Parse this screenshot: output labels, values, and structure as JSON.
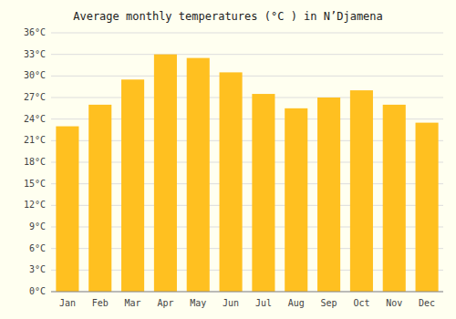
{
  "chart_data": {
    "type": "bar",
    "title": "Average monthly temperatures (°C ) in N’Djamena",
    "categories": [
      "Jan",
      "Feb",
      "Mar",
      "Apr",
      "May",
      "Jun",
      "Jul",
      "Aug",
      "Sep",
      "Oct",
      "Nov",
      "Dec"
    ],
    "values": [
      23.0,
      26.0,
      29.5,
      33.0,
      32.5,
      30.5,
      27.5,
      25.5,
      27.0,
      28.0,
      26.0,
      23.5
    ],
    "color": "#FFC020",
    "ylim": [
      0,
      36
    ],
    "yticks": [
      {
        "value": 0,
        "label": "0°C"
      },
      {
        "value": 3,
        "label": "3°C"
      },
      {
        "value": 6,
        "label": "6°C"
      },
      {
        "value": 9,
        "label": "9°C"
      },
      {
        "value": 12,
        "label": "12°C"
      },
      {
        "value": 15,
        "label": "15°C"
      },
      {
        "value": 18,
        "label": "18°C"
      },
      {
        "value": 21,
        "label": "21°C"
      },
      {
        "value": 24,
        "label": "24°C"
      },
      {
        "value": 27,
        "label": "27°C"
      },
      {
        "value": 30,
        "label": "30°C"
      },
      {
        "value": 33,
        "label": "33°C"
      },
      {
        "value": 36,
        "label": "36°C"
      }
    ],
    "grid": true
  }
}
